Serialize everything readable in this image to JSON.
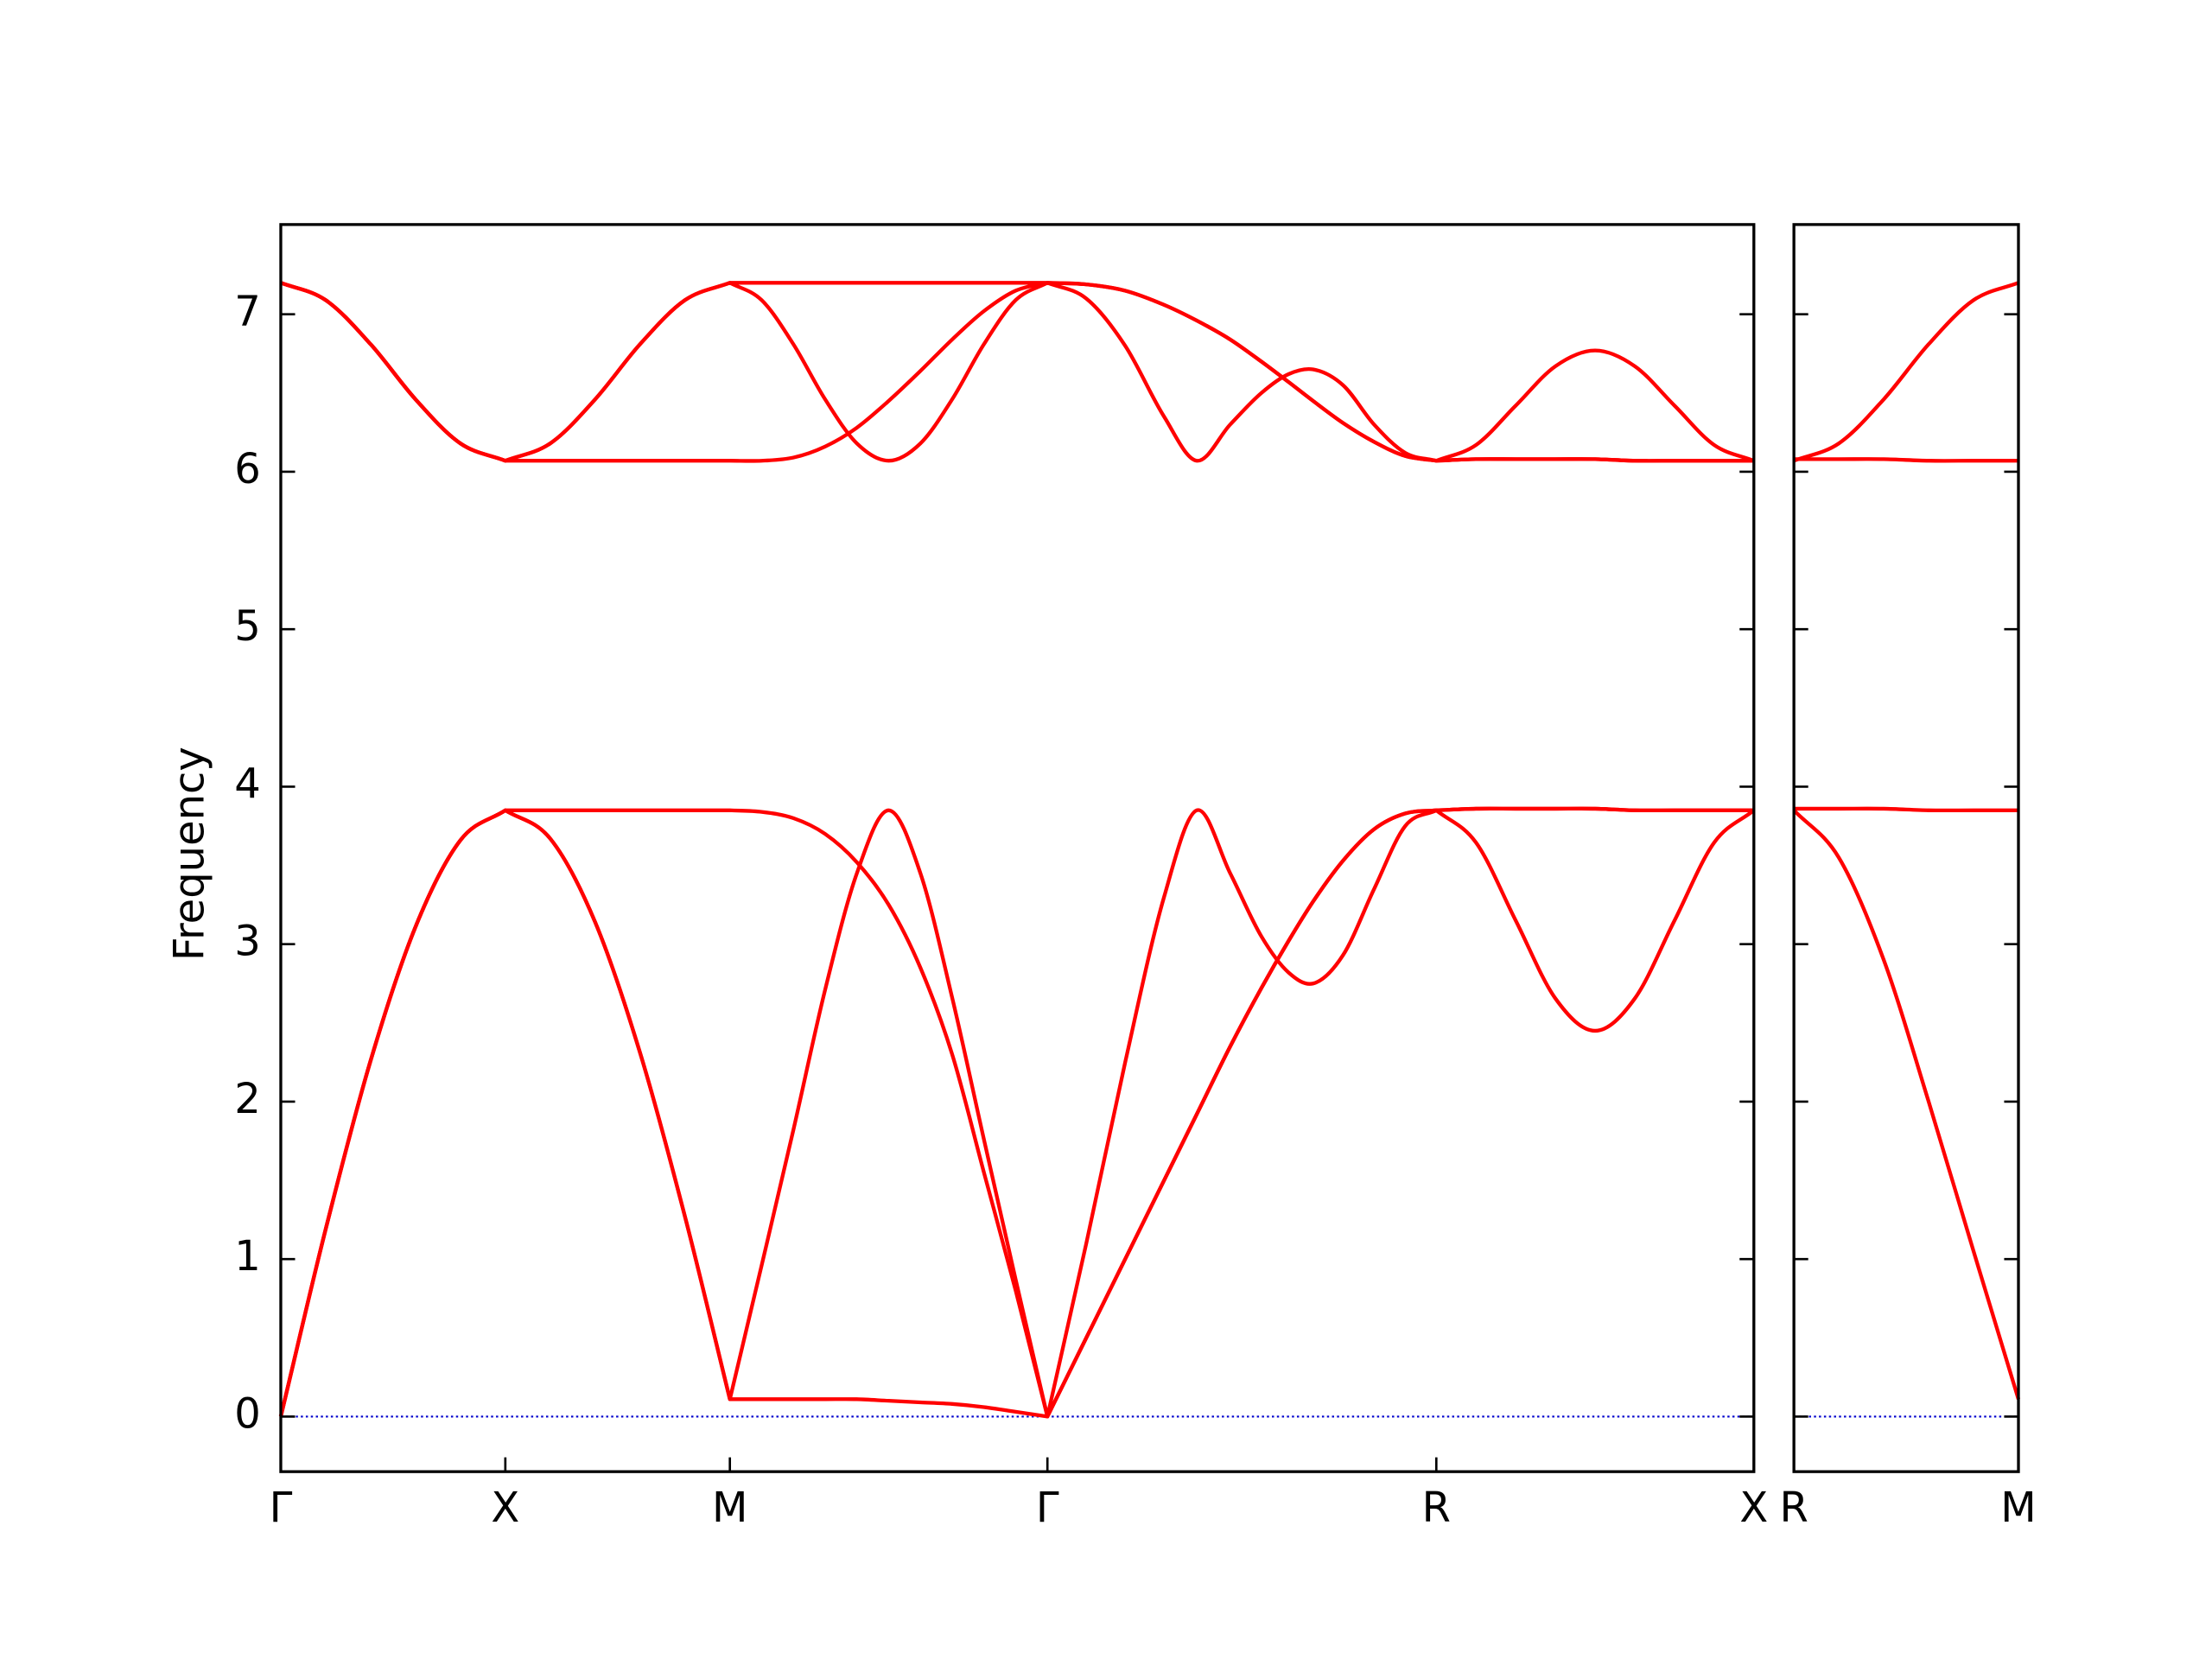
{
  "chart_data": [
    {
      "type": "line",
      "y_label": "Frequency",
      "xlim": [
        0,
        3.2802
      ],
      "ylim": [
        -0.35,
        7.57
      ],
      "xticks": [
        {
          "value": 0,
          "label": "Γ"
        },
        {
          "value": 0.5,
          "label": "X"
        },
        {
          "value": 1.0,
          "label": "M"
        },
        {
          "value": 1.7071,
          "label": "Γ"
        },
        {
          "value": 2.5731,
          "label": "R"
        },
        {
          "value": 3.2802,
          "label": "X"
        }
      ],
      "yticks": [
        0,
        1,
        2,
        3,
        4,
        5,
        6,
        7
      ],
      "show_ytick_labels": true,
      "zero_line": true,
      "zero_line_color": "#0000cc",
      "x": [
        0,
        0.1,
        0.2,
        0.3,
        0.4,
        0.5,
        0.6,
        0.7,
        0.8,
        0.9,
        1.0,
        1.0707,
        1.1414,
        1.2121,
        1.2828,
        1.3536,
        1.4243,
        1.495,
        1.5657,
        1.6364,
        1.7071,
        1.7937,
        1.8803,
        1.9669,
        2.0397,
        2.1141,
        2.1834,
        2.244,
        2.2986,
        2.3653,
        2.4345,
        2.5038,
        2.5731,
        2.6615,
        2.7499,
        2.8383,
        2.9267,
        3.0151,
        3.1035,
        3.1918,
        3.2802
      ],
      "series": [
        {
          "color": "#ff0000",
          "values": [
            0,
            1.19,
            2.26,
            3.11,
            3.66,
            3.85,
            3.67,
            3.14,
            2.31,
            1.27,
            0.11,
            0.96,
            1.82,
            2.71,
            3.45,
            3.85,
            3.45,
            2.66,
            1.76,
            0.87,
            0,
            1.1,
            2.25,
            3.3,
            3.85,
            3.45,
            3.05,
            2.82,
            2.75,
            2.93,
            3.35,
            3.75,
            3.85,
            3.645,
            3.15,
            2.655,
            2.45,
            2.655,
            3.15,
            3.645,
            3.85
          ]
        },
        {
          "color": "#ff0000",
          "values": [
            0,
            1.19,
            2.26,
            3.11,
            3.66,
            3.85,
            3.85,
            3.85,
            3.85,
            3.85,
            3.85,
            3.84,
            3.8,
            3.7,
            3.52,
            3.25,
            2.85,
            2.3,
            1.55,
            0.8,
            0,
            0.5,
            1.0,
            1.5,
            1.92,
            2.35,
            2.72,
            3.02,
            3.27,
            3.53,
            3.73,
            3.83,
            3.85,
            3.86,
            3.86,
            3.86,
            3.86,
            3.85,
            3.85,
            3.85,
            3.85
          ]
        },
        {
          "color": "#ff0000",
          "values": [
            0,
            1.19,
            2.26,
            3.11,
            3.66,
            3.85,
            3.67,
            3.14,
            2.31,
            1.27,
            0.11,
            0.11,
            0.11,
            0.11,
            0.11,
            0.1,
            0.09,
            0.08,
            0.06,
            0.03,
            0,
            0.5,
            1.0,
            1.5,
            1.92,
            2.35,
            2.72,
            3.02,
            3.27,
            3.53,
            3.73,
            3.83,
            3.85,
            3.86,
            3.86,
            3.86,
            3.86,
            3.85,
            3.85,
            3.85,
            3.85
          ]
        },
        {
          "color": "#ff0000",
          "values": [
            7.2,
            7.09,
            6.81,
            6.46,
            6.18,
            6.07,
            6.18,
            6.46,
            6.81,
            7.09,
            7.2,
            7.2,
            7.2,
            7.2,
            7.2,
            7.2,
            7.2,
            7.2,
            7.2,
            7.2,
            7.2,
            7.19,
            7.15,
            7.06,
            6.96,
            6.84,
            6.7,
            6.57,
            6.45,
            6.31,
            6.19,
            6.1,
            6.07,
            6.08,
            6.08,
            6.08,
            6.08,
            6.07,
            6.07,
            6.07,
            6.07
          ]
        },
        {
          "color": "#ff0000",
          "values": [
            7.2,
            7.09,
            6.81,
            6.46,
            6.18,
            6.07,
            6.07,
            6.07,
            6.07,
            6.07,
            6.07,
            6.07,
            6.09,
            6.16,
            6.28,
            6.45,
            6.64,
            6.84,
            7.02,
            7.15,
            7.2,
            7.19,
            7.15,
            7.06,
            6.96,
            6.84,
            6.7,
            6.57,
            6.45,
            6.31,
            6.19,
            6.1,
            6.07,
            6.08,
            6.08,
            6.08,
            6.08,
            6.07,
            6.07,
            6.07,
            6.07
          ]
        },
        {
          "color": "#ff0000",
          "values": [
            7.2,
            7.09,
            6.81,
            6.46,
            6.18,
            6.07,
            6.18,
            6.46,
            6.81,
            7.09,
            7.2,
            7.09,
            6.81,
            6.46,
            6.18,
            6.07,
            6.18,
            6.46,
            6.81,
            7.09,
            7.2,
            7.1,
            6.8,
            6.35,
            6.07,
            6.3,
            6.5,
            6.62,
            6.65,
            6.55,
            6.3,
            6.12,
            6.07,
            6.17,
            6.42,
            6.67,
            6.77,
            6.67,
            6.42,
            6.17,
            6.07
          ]
        }
      ]
    },
    {
      "type": "line",
      "xlim": [
        0,
        0.5
      ],
      "ylim": [
        -0.35,
        7.57
      ],
      "xticks": [
        {
          "value": 0,
          "label": "R"
        },
        {
          "value": 0.5,
          "label": "M"
        }
      ],
      "yticks": [
        0,
        1,
        2,
        3,
        4,
        5,
        6,
        7
      ],
      "show_ytick_labels": false,
      "zero_line": true,
      "zero_line_color": "#0000cc",
      "x": [
        0,
        0.1,
        0.2,
        0.3,
        0.4,
        0.5
      ],
      "series": [
        {
          "color": "#ff0000",
          "values": [
            3.85,
            3.55,
            2.9,
            2.0,
            1.05,
            0.11
          ]
        },
        {
          "color": "#ff0000",
          "values": [
            3.86,
            3.86,
            3.86,
            3.85,
            3.85,
            3.85
          ]
        },
        {
          "color": "#ff0000",
          "values": [
            6.08,
            6.08,
            6.08,
            6.07,
            6.07,
            6.07
          ]
        },
        {
          "color": "#ff0000",
          "values": [
            6.07,
            6.18,
            6.46,
            6.81,
            7.09,
            7.2
          ]
        }
      ]
    }
  ]
}
